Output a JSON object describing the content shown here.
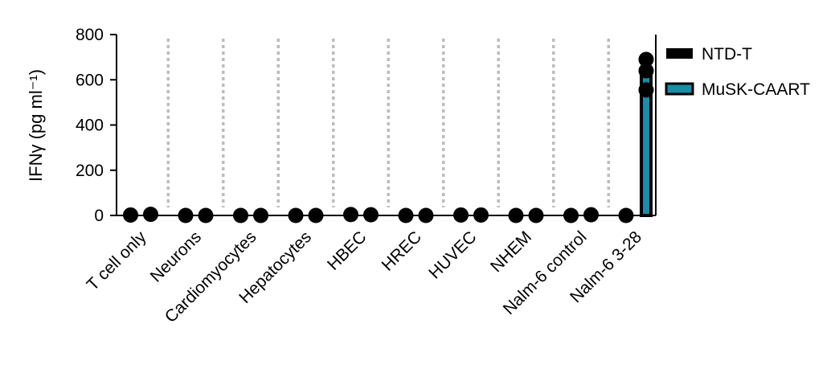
{
  "chart_data": {
    "type": "bar",
    "title": "",
    "xlabel": "",
    "ylabel": "IFNγ (pg ml⁻¹)",
    "ylim": [
      0,
      800
    ],
    "yticks": [
      "0",
      "200",
      "400",
      "600",
      "800"
    ],
    "grid": false,
    "legend_position": "right",
    "categories": [
      "T cell only",
      "Neurons",
      "Cardiomyocytes",
      "Hepatocytes",
      "HBEC",
      "HREC",
      "HUVEC",
      "NHEM",
      "Nalm-6 control",
      "Nalm-6 3-28"
    ],
    "series": [
      {
        "name": "NTD-T",
        "color": "#000000",
        "values": [
          2,
          0,
          0,
          0,
          4,
          0,
          2,
          0,
          0,
          0
        ],
        "points": [
          [
            2
          ],
          [
            0
          ],
          [
            0
          ],
          [
            0
          ],
          [
            4
          ],
          [
            0
          ],
          [
            2
          ],
          [
            0
          ],
          [
            0
          ],
          [
            0
          ]
        ]
      },
      {
        "name": "MuSK-CAART",
        "color": "#1b8ba6",
        "values": [
          5,
          0,
          0,
          0,
          3,
          0,
          2,
          0,
          3,
          620
        ],
        "points": [
          [
            5
          ],
          [
            0
          ],
          [
            0
          ],
          [
            0
          ],
          [
            3
          ],
          [
            0
          ],
          [
            2
          ],
          [
            0
          ],
          [
            3
          ],
          [
            690,
            640,
            555
          ]
        ]
      }
    ]
  }
}
